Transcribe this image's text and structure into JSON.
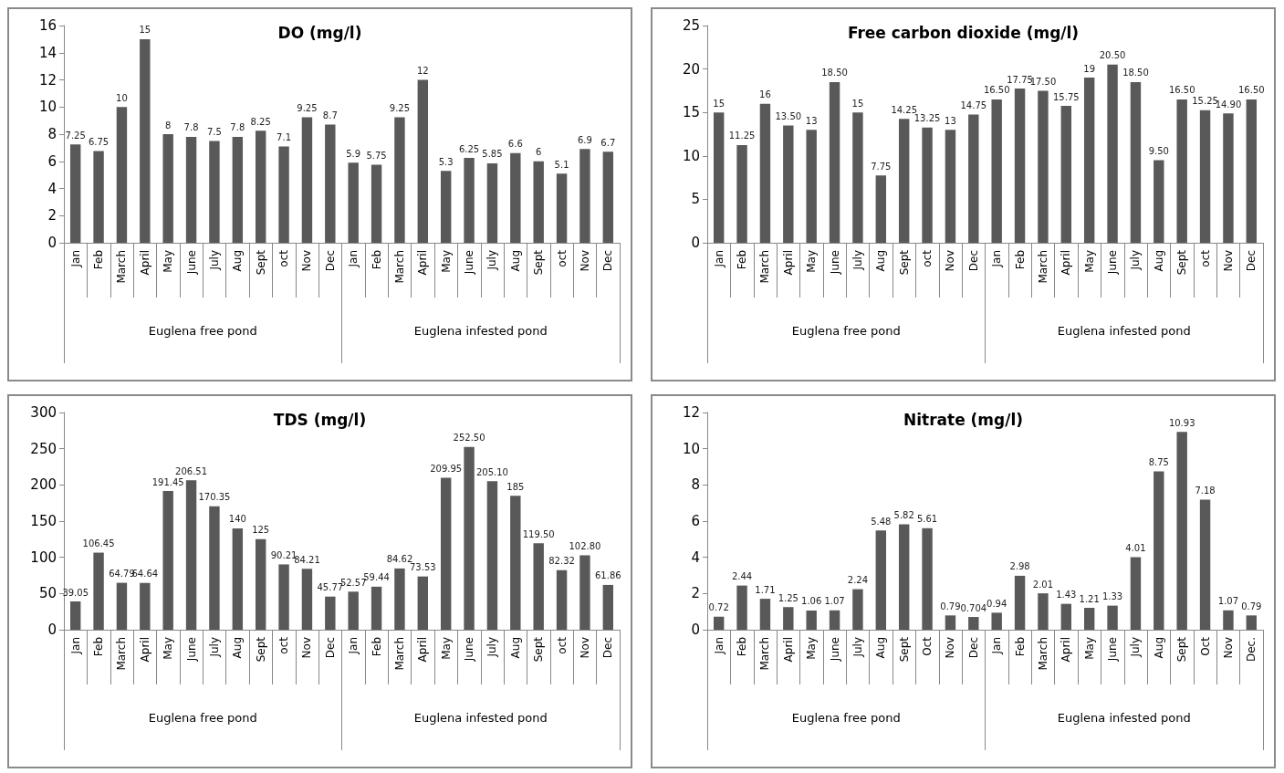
{
  "chart_data": [
    {
      "type": "bar",
      "title": "DO (mg/l)",
      "categories": [
        "Jan",
        "Feb",
        "March",
        "April",
        "May",
        "June",
        "July",
        "Aug",
        "Sept",
        "oct",
        "Nov",
        "Dec",
        "Jan",
        "Feb",
        "March",
        "April",
        "May",
        "June",
        "July",
        "Aug",
        "Sept",
        "oct",
        "Nov",
        "Dec"
      ],
      "values": [
        7.25,
        6.75,
        10,
        15,
        8,
        7.8,
        7.5,
        7.8,
        8.25,
        7.1,
        9.25,
        8.7,
        5.9,
        5.75,
        9.25,
        12,
        5.3,
        6.25,
        5.85,
        6.6,
        6,
        5.1,
        6.9,
        6.7
      ],
      "value_labels": [
        "7.25",
        "6.75",
        "10",
        "15",
        "8",
        "7.8",
        "7.5",
        "7.8",
        "8.25",
        "7.1",
        "9.25",
        "8.7",
        "5.9",
        "5.75",
        "9.25",
        "12",
        "5.3",
        "6.25",
        "5.85",
        "6.6",
        "6",
        "5.1",
        "6.9",
        "6.7"
      ],
      "color": "#595959",
      "ylim": [
        0,
        16
      ],
      "yticks": [
        0,
        2,
        4,
        6,
        8,
        10,
        12,
        14,
        16
      ],
      "grid": false,
      "annotations": [
        "Euglena free pond",
        "Euglena infested pond"
      ]
    },
    {
      "type": "bar",
      "title": "Free carbon dioxide (mg/l)",
      "categories": [
        "Jan",
        "Feb",
        "March",
        "April",
        "May",
        "June",
        "July",
        "Aug",
        "Sept",
        "oct",
        "Nov",
        "Dec",
        "Jan",
        "Feb",
        "March",
        "April",
        "May",
        "June",
        "July",
        "Aug",
        "Sept",
        "oct",
        "Nov",
        "Dec"
      ],
      "values": [
        15,
        11.25,
        16,
        13.5,
        13,
        18.5,
        15,
        7.75,
        14.25,
        13.25,
        13,
        14.75,
        16.5,
        17.75,
        17.5,
        15.75,
        19,
        20.5,
        18.5,
        9.5,
        16.5,
        15.25,
        14.9,
        16.5
      ],
      "value_labels": [
        "15",
        "11.25",
        "16",
        "13.50",
        "13",
        "18.50",
        "15",
        "7.75",
        "14.25",
        "13.25",
        "13",
        "14.75",
        "16.50",
        "17.75",
        "17.50",
        "15.75",
        "19",
        "20.50",
        "18.50",
        "9.50",
        "16.50",
        "15.25",
        "14.90",
        "16.50"
      ],
      "color": "#595959",
      "ylim": [
        0,
        25
      ],
      "yticks": [
        0,
        5,
        10,
        15,
        20,
        25
      ],
      "grid": false,
      "annotations": [
        "Euglena free pond",
        "Euglena infested pond"
      ]
    },
    {
      "type": "bar",
      "title": "TDS (mg/l)",
      "categories": [
        "Jan",
        "Feb",
        "March",
        "April",
        "May",
        "June",
        "July",
        "Aug",
        "Sept",
        "oct",
        "Nov",
        "Dec",
        "Jan",
        "Feb",
        "March",
        "April",
        "May",
        "June",
        "July",
        "Aug",
        "Sept",
        "oct",
        "Nov",
        "Dec"
      ],
      "values": [
        39.05,
        106.45,
        64.79,
        64.64,
        191.45,
        206.51,
        170.35,
        140,
        125,
        90.21,
        84.21,
        45.77,
        52.57,
        59.44,
        84.62,
        73.53,
        209.95,
        252.5,
        205.1,
        185,
        119.5,
        82.32,
        102.8,
        61.86
      ],
      "value_labels": [
        "39.05",
        "106.45",
        "64.79",
        "64.64",
        "191.45",
        "206.51",
        "170.35",
        "140",
        "125",
        "90.21",
        "84.21",
        "45.77",
        "52.57",
        "59.44",
        "84.62",
        "73.53",
        "209.95",
        "252.50",
        "205.10",
        "185",
        "119.50",
        "82.32",
        "102.80",
        "61.86"
      ],
      "color": "#595959",
      "ylim": [
        0,
        300
      ],
      "yticks": [
        0,
        50,
        100,
        150,
        200,
        250,
        300
      ],
      "grid": false,
      "annotations": [
        "Euglena free pond",
        "Euglena infested pond"
      ]
    },
    {
      "type": "bar",
      "title": "Nitrate (mg/l)",
      "categories": [
        "Jan",
        "Feb",
        "March",
        "April",
        "May",
        "June",
        "July",
        "Aug",
        "Sept",
        "Oct",
        "Nov",
        "Dec",
        "Jan",
        "Feb",
        "March",
        "April",
        "May",
        "June",
        "July",
        "Aug",
        "Sept",
        "Oct",
        "Nov",
        "Dec."
      ],
      "values": [
        0.72,
        2.44,
        1.71,
        1.25,
        1.06,
        1.07,
        2.24,
        5.48,
        5.82,
        5.61,
        0.79,
        0.704,
        0.94,
        2.98,
        2.01,
        1.43,
        1.21,
        1.33,
        4.01,
        8.75,
        10.93,
        7.18,
        1.07,
        0.79
      ],
      "value_labels": [
        "0.72",
        "2.44",
        "1.71",
        "1.25",
        "1.06",
        "1.07",
        "2.24",
        "5.48",
        "5.82",
        "5.61",
        "0.79",
        "0.704",
        "0.94",
        "2.98",
        "2.01",
        "1.43",
        "1.21",
        "1.33",
        "4.01",
        "8.75",
        "10.93",
        "7.18",
        "1.07",
        "0.79"
      ],
      "color": "#595959",
      "ylim": [
        0,
        12
      ],
      "yticks": [
        0,
        2,
        4,
        6,
        8,
        10,
        12
      ],
      "grid": false,
      "annotations": [
        "Euglena free pond",
        "Euglena infested pond"
      ]
    }
  ]
}
